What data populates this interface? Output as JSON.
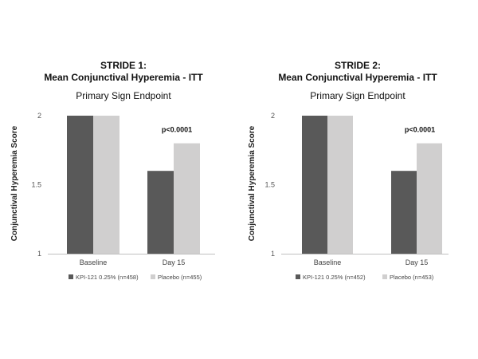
{
  "colors": {
    "kpi": "#595959",
    "placebo": "#d0cfcf"
  },
  "chart_data": [
    {
      "type": "bar",
      "title_line1": "STRIDE 1:",
      "title_line2": "Mean Conjunctival Hyperemia - ITT",
      "subtitle": "Primary Sign Endpoint",
      "ylabel": "Conjunctival Hyperemia Score",
      "ylim": [
        1,
        2
      ],
      "yticks": [
        "1",
        "1.5",
        "2"
      ],
      "categories": [
        "Baseline",
        "Day 15"
      ],
      "series": [
        {
          "name": "KPI-121 0.25% (n=458)",
          "values": [
            2.0,
            1.6
          ]
        },
        {
          "name": "Placebo (n=455)",
          "values": [
            2.0,
            1.8
          ]
        }
      ],
      "annotation": "p<0.0001"
    },
    {
      "type": "bar",
      "title_line1": "STRIDE 2:",
      "title_line2": "Mean Conjunctival Hyperemia - ITT",
      "subtitle": "Primary Sign Endpoint",
      "ylabel": "Conjunctival Hyperemia Score",
      "ylim": [
        1,
        2
      ],
      "yticks": [
        "1",
        "1.5",
        "2"
      ],
      "categories": [
        "Baseline",
        "Day 15"
      ],
      "series": [
        {
          "name": "KPI-121 0.25% (n=452)",
          "values": [
            2.0,
            1.6
          ]
        },
        {
          "name": "Placebo (n=453)",
          "values": [
            2.0,
            1.8
          ]
        }
      ],
      "annotation": "p<0.0001"
    }
  ]
}
